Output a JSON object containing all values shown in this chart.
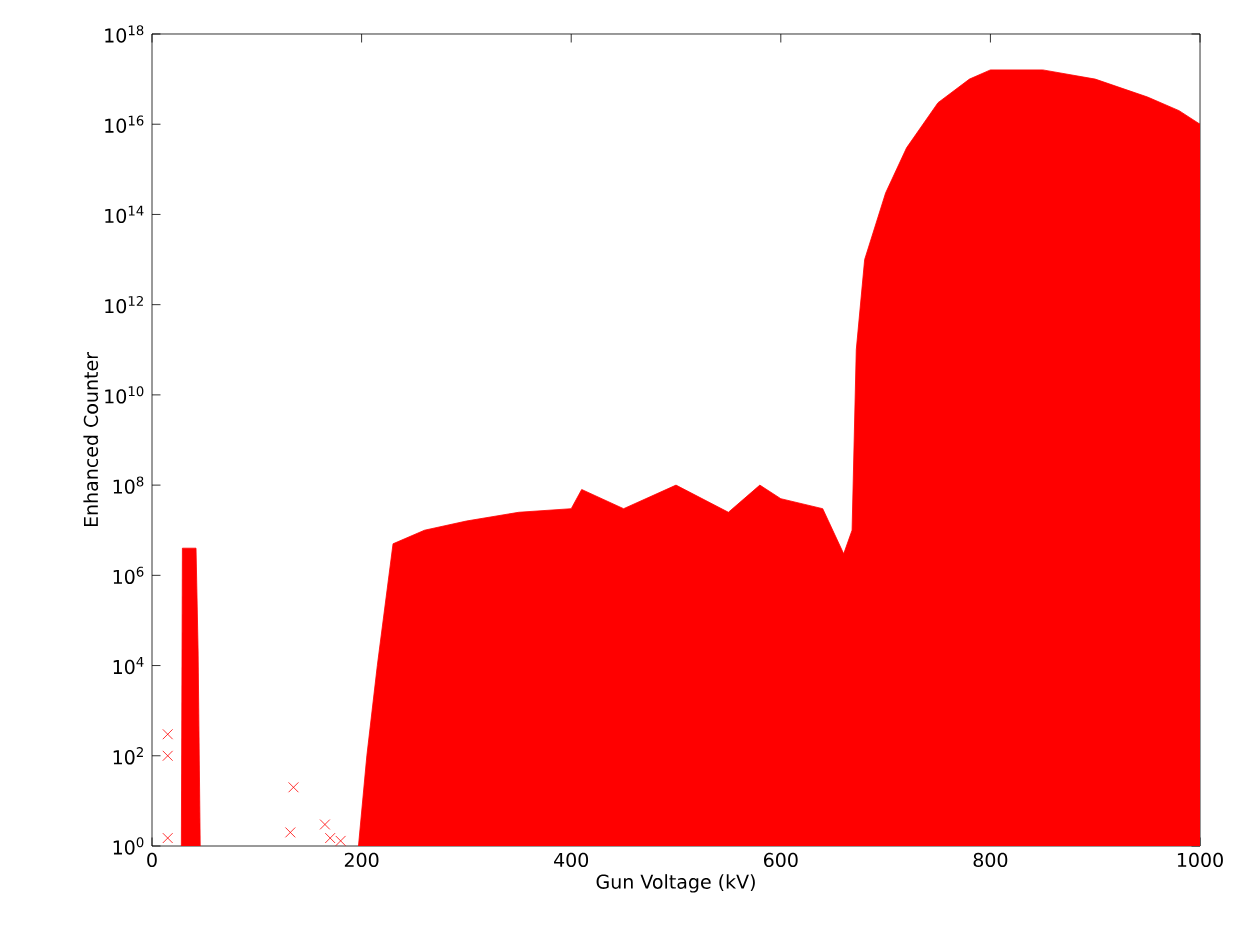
{
  "chart_data": {
    "type": "scatter",
    "xlabel": "Gun Voltage (kV)",
    "ylabel": "Enhanced Counter",
    "log": "y",
    "xlim": [
      0,
      1000
    ],
    "xticks": [
      0,
      200,
      400,
      600,
      800,
      1000
    ],
    "ylim": [
      1,
      1e+18
    ],
    "yticks": [
      {
        "value": 1,
        "label": "10$^{0}$"
      },
      {
        "value": 100.0,
        "label": "10$^{2}$"
      },
      {
        "value": 10000.0,
        "label": "10$^{4}$"
      },
      {
        "value": 1000000.0,
        "label": "10$^{6}$"
      },
      {
        "value": 100000000.0,
        "label": "10$^{8}$"
      },
      {
        "value": 10000000000.0,
        "label": "10$^{10}$"
      },
      {
        "value": 1000000000000.0,
        "label": "10$^{12}$"
      },
      {
        "value": 100000000000000.0,
        "label": "10$^{14}$"
      },
      {
        "value": 1e+16,
        "label": "10$^{16}$"
      },
      {
        "value": 1e+18,
        "label": "10$^{18}$"
      }
    ],
    "series": [
      {
        "type": "area",
        "color": "#ff0000",
        "x": [
          197,
          205,
          215,
          230,
          260,
          300,
          350,
          400,
          410,
          450,
          500,
          550,
          580,
          600,
          640,
          660,
          668,
          672,
          680,
          700,
          720,
          750,
          780,
          800,
          850,
          900,
          950,
          980,
          1000
        ],
        "values": [
          1,
          100,
          10000.0,
          5000000.0,
          10000000.0,
          16000000.0,
          25000000.0,
          30000000.0,
          80000000.0,
          30000000.0,
          100000000.0,
          25000000.0,
          100000000.0,
          50000000.0,
          30000000.0,
          3000000.0,
          10000000.0,
          100000000000.0,
          10000000000000.0,
          300000000000000.0,
          3000000000000000.0,
          3e+16,
          1e+17,
          1.6e+17,
          1.6e+17,
          1e+17,
          4e+16,
          2e+16,
          1e+16
        ]
      },
      {
        "type": "area",
        "color": "#ff0000",
        "x": [
          28,
          29,
          42,
          44,
          46
        ],
        "values": [
          1,
          4000000.0,
          4000000.0,
          20000.0,
          1
        ]
      },
      {
        "color": "#ff0000",
        "marker": "cross",
        "x": [
          15,
          15,
          15,
          135,
          132,
          165,
          170,
          180
        ],
        "values": [
          300,
          100,
          1.5,
          20,
          2,
          3,
          1.5,
          1.3
        ]
      }
    ]
  }
}
